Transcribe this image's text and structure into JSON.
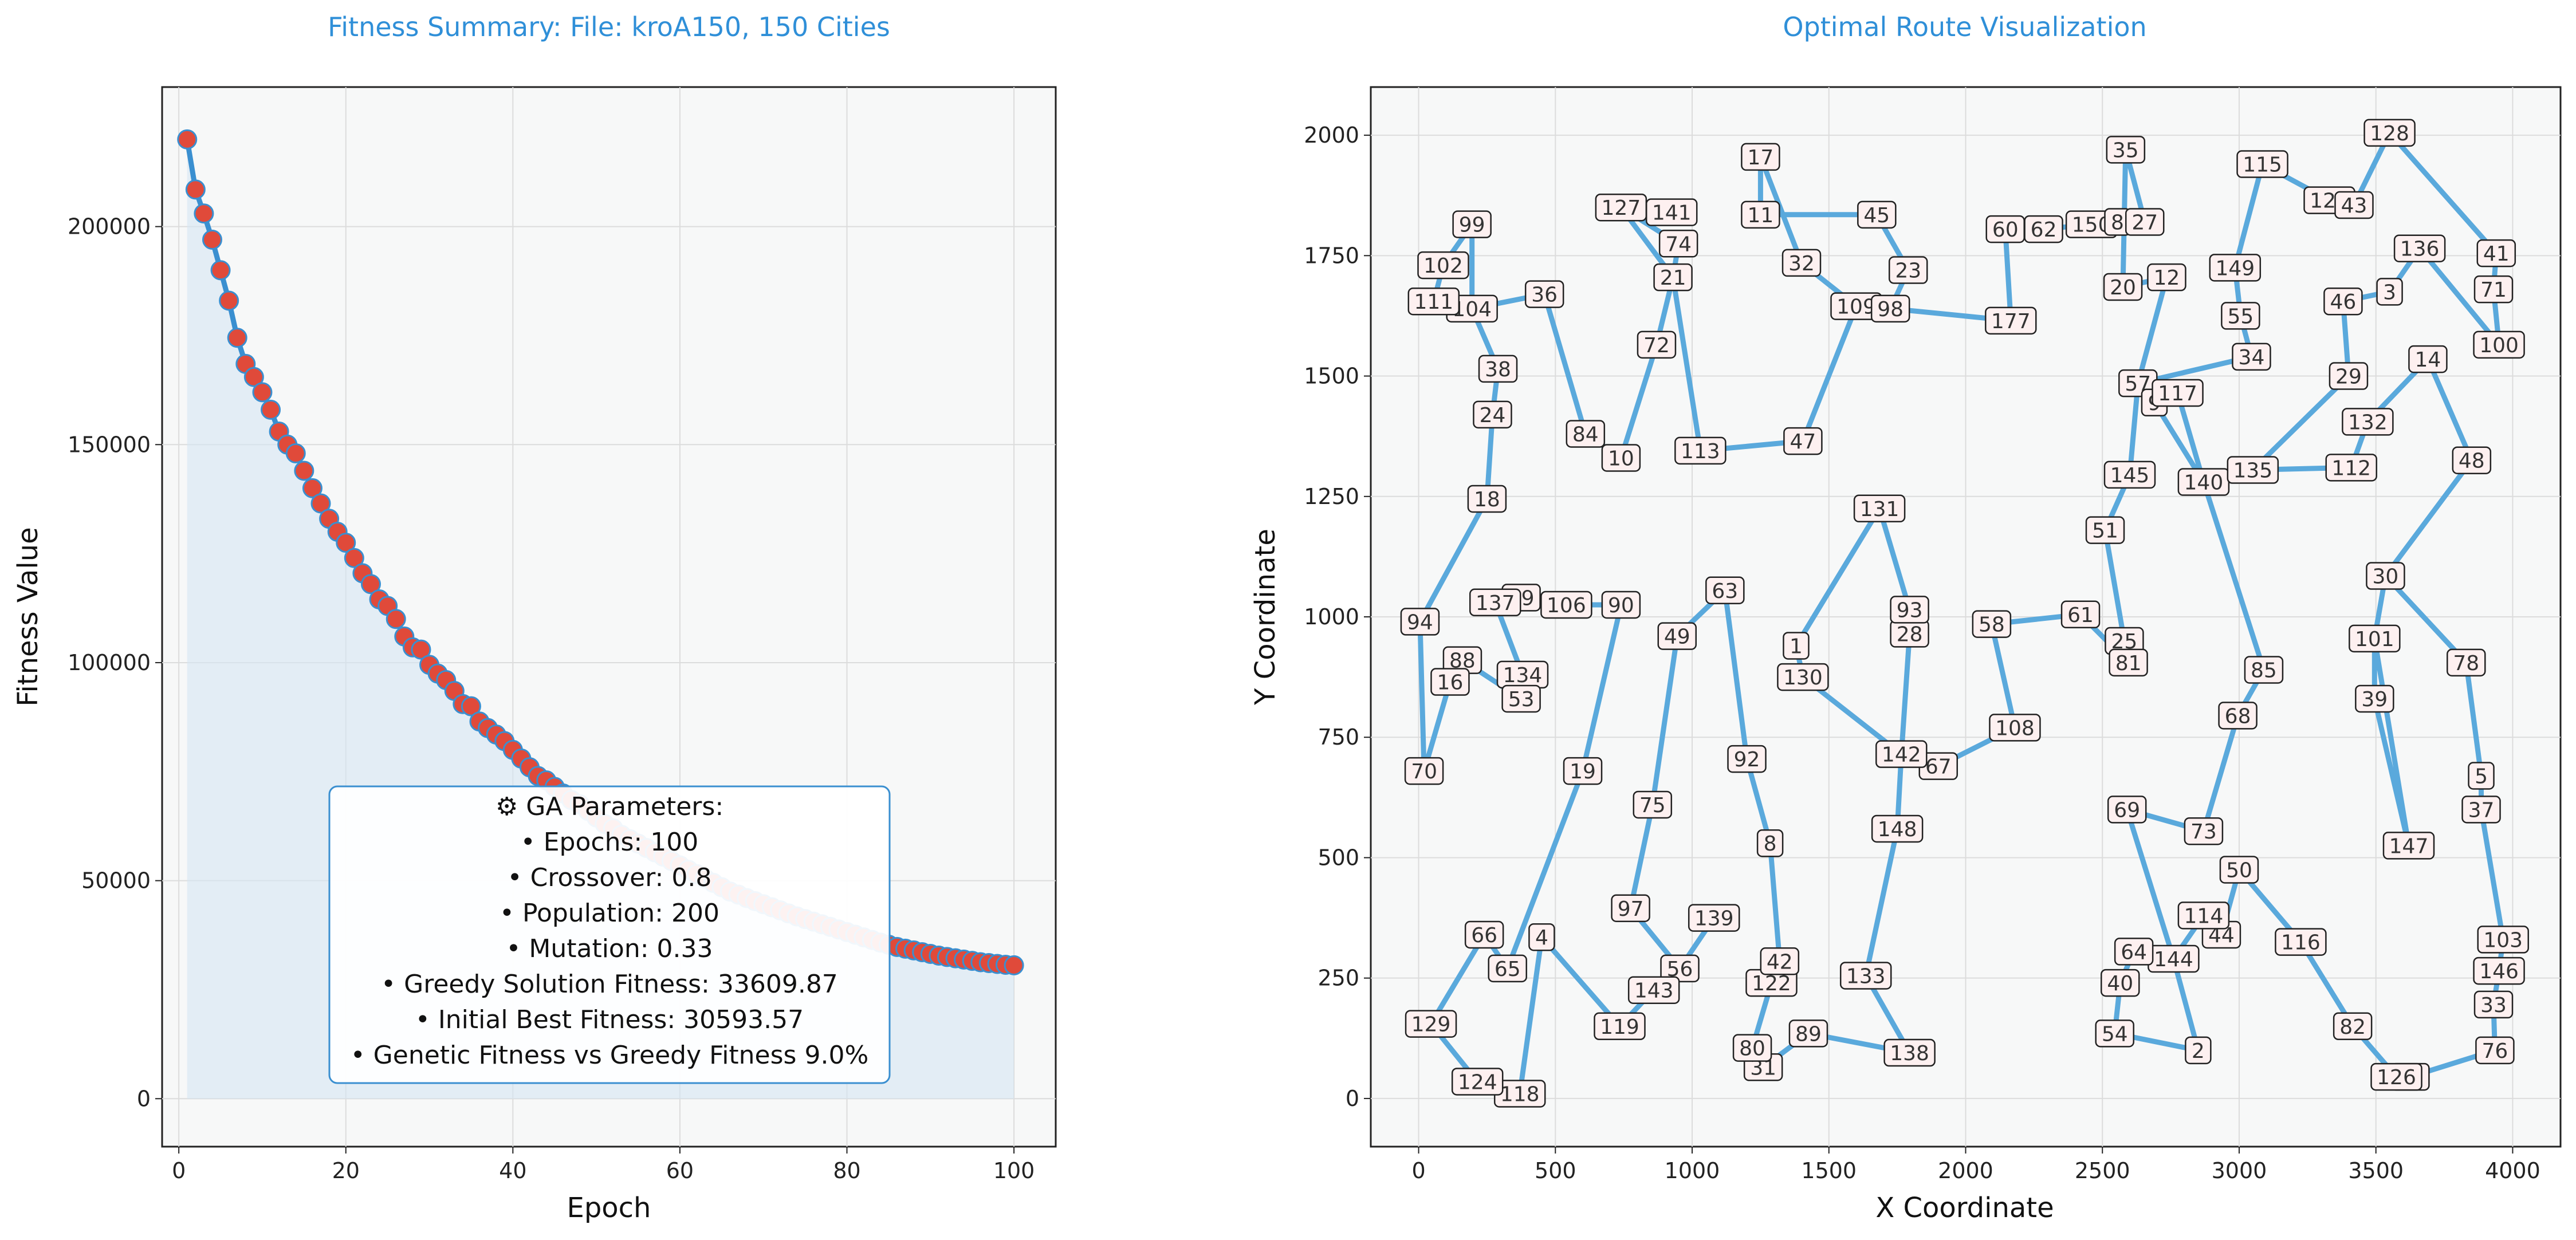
{
  "chart_data": [
    {
      "type": "line",
      "title": "Fitness Summary: File: kroA150, 150 Cities",
      "xlabel": "Epoch",
      "ylabel": "Fitness Value",
      "xlim": [
        -2,
        105
      ],
      "ylim": [
        -11000,
        232000
      ],
      "xticks": [
        0,
        20,
        40,
        60,
        80,
        100
      ],
      "yticks": [
        0,
        50000,
        100000,
        150000,
        200000
      ],
      "grid": true,
      "series": [
        {
          "x": [
            1,
            2,
            3,
            4,
            5,
            6,
            7,
            8,
            9,
            10,
            11,
            12,
            13,
            14,
            15,
            16,
            17,
            18,
            19,
            20,
            21,
            22,
            23,
            24,
            25,
            26,
            27,
            28,
            29,
            30,
            31,
            32,
            33,
            34,
            35,
            36,
            37,
            38,
            39,
            40,
            41,
            42,
            43,
            44,
            45,
            46,
            47,
            48,
            49,
            50,
            51,
            52,
            53,
            54,
            55,
            56,
            57,
            58,
            59,
            60,
            61,
            62,
            63,
            64,
            65,
            66,
            67,
            68,
            69,
            70,
            71,
            72,
            73,
            74,
            75,
            76,
            77,
            78,
            79,
            80,
            81,
            82,
            83,
            84,
            85,
            86,
            87,
            88,
            89,
            90,
            91,
            92,
            93,
            94,
            95,
            96,
            97,
            98,
            99,
            100
          ],
          "y": [
            220000,
            208500,
            203000,
            197000,
            190000,
            183000,
            174500,
            168500,
            165500,
            162000,
            158000,
            153000,
            150000,
            148000,
            144000,
            140000,
            136500,
            133000,
            130000,
            127500,
            124000,
            120500,
            118000,
            114500,
            113000,
            110000,
            106000,
            103500,
            103000,
            99500,
            97500,
            96000,
            93500,
            90500,
            90000,
            86500,
            85000,
            83500,
            82000,
            80000,
            78000,
            76000,
            74000,
            73000,
            71500,
            70000,
            68500,
            67500,
            66000,
            64500,
            63000,
            62000,
            60500,
            59500,
            58500,
            57500,
            56500,
            55500,
            54500,
            53500,
            52500,
            51500,
            50500,
            49500,
            48500,
            47500,
            46800,
            46000,
            45300,
            44600,
            43900,
            43200,
            42500,
            41800,
            41200,
            40600,
            40000,
            39400,
            38800,
            38200,
            37600,
            37000,
            36400,
            35800,
            35300,
            34800,
            34400,
            34000,
            33600,
            33200,
            32800,
            32500,
            32200,
            31900,
            31600,
            31300,
            31100,
            30900,
            30700,
            30594
          ]
        }
      ],
      "params_box": {
        "lines": [
          "⚙ GA Parameters:",
          "• Epochs: 100",
          "• Crossover: 0.8",
          "• Population: 200",
          "• Mutation: 0.33",
          "• Greedy Solution Fitness: 33609.87",
          "• Initial Best Fitness: 30593.57",
          "• Genetic Fitness vs Greedy Fitness 9.0%"
        ]
      }
    },
    {
      "type": "scatter",
      "title": "Optimal Route Visualization",
      "xlabel": "X Coordinate",
      "ylabel": "Y Coordinate",
      "xlim": [
        -175,
        4175
      ],
      "ylim": [
        -100,
        2100
      ],
      "xticks": [
        0,
        500,
        1000,
        1500,
        2000,
        2500,
        3000,
        3500,
        4000
      ],
      "yticks": [
        0,
        250,
        500,
        750,
        1000,
        1250,
        1500,
        1750,
        2000
      ],
      "grid": true,
      "colors": {
        "route": "#5aa9dc"
      },
      "points": [
        {
          "id": "94",
          "x": 5,
          "y": 990
        },
        {
          "id": "18",
          "x": 250,
          "y": 1245
        },
        {
          "id": "24",
          "x": 270,
          "y": 1420
        },
        {
          "id": "38",
          "x": 290,
          "y": 1515
        },
        {
          "id": "104",
          "x": 195,
          "y": 1640
        },
        {
          "id": "99",
          "x": 195,
          "y": 1815
        },
        {
          "id": "102",
          "x": 90,
          "y": 1730
        },
        {
          "id": "111",
          "x": 55,
          "y": 1655
        },
        {
          "id": "36",
          "x": 460,
          "y": 1670
        },
        {
          "id": "84",
          "x": 610,
          "y": 1380
        },
        {
          "id": "10",
          "x": 740,
          "y": 1330
        },
        {
          "id": "72",
          "x": 870,
          "y": 1565
        },
        {
          "id": "21",
          "x": 930,
          "y": 1705
        },
        {
          "id": "74",
          "x": 950,
          "y": 1775
        },
        {
          "id": "127",
          "x": 740,
          "y": 1850
        },
        {
          "id": "141",
          "x": 925,
          "y": 1840
        },
        {
          "id": "113",
          "x": 1030,
          "y": 1345
        },
        {
          "id": "47",
          "x": 1405,
          "y": 1365
        },
        {
          "id": "109",
          "x": 1600,
          "y": 1645
        },
        {
          "id": "98",
          "x": 1725,
          "y": 1640
        },
        {
          "id": "23",
          "x": 1790,
          "y": 1720
        },
        {
          "id": "45",
          "x": 1675,
          "y": 1835
        },
        {
          "id": "11",
          "x": 1250,
          "y": 1835
        },
        {
          "id": "17",
          "x": 1250,
          "y": 1955
        },
        {
          "id": "32",
          "x": 1400,
          "y": 1735
        },
        {
          "id": "177",
          "x": 2165,
          "y": 1615
        },
        {
          "id": "60",
          "x": 2145,
          "y": 1805
        },
        {
          "id": "62",
          "x": 2285,
          "y": 1805
        },
        {
          "id": "150",
          "x": 2460,
          "y": 1815
        },
        {
          "id": "8",
          "x": 2555,
          "y": 1820
        },
        {
          "id": "27",
          "x": 2655,
          "y": 1820
        },
        {
          "id": "35",
          "x": 2585,
          "y": 1970
        },
        {
          "id": "20",
          "x": 2575,
          "y": 1685
        },
        {
          "id": "12",
          "x": 2735,
          "y": 1705
        },
        {
          "id": "57",
          "x": 2630,
          "y": 1485
        },
        {
          "id": "9",
          "x": 2690,
          "y": 1445
        },
        {
          "id": "117",
          "x": 2775,
          "y": 1465
        },
        {
          "id": "145",
          "x": 2600,
          "y": 1295
        },
        {
          "id": "51",
          "x": 2510,
          "y": 1180
        },
        {
          "id": "25",
          "x": 2580,
          "y": 950
        },
        {
          "id": "81",
          "x": 2595,
          "y": 905
        },
        {
          "id": "61",
          "x": 2420,
          "y": 1005
        },
        {
          "id": "58",
          "x": 2095,
          "y": 985
        },
        {
          "id": "108",
          "x": 2180,
          "y": 770
        },
        {
          "id": "67",
          "x": 1900,
          "y": 690
        },
        {
          "id": "142",
          "x": 1765,
          "y": 715
        },
        {
          "id": "28",
          "x": 1795,
          "y": 965
        },
        {
          "id": "93",
          "x": 1795,
          "y": 1015
        },
        {
          "id": "131",
          "x": 1685,
          "y": 1225
        },
        {
          "id": "1",
          "x": 1380,
          "y": 940
        },
        {
          "id": "130",
          "x": 1405,
          "y": 875
        },
        {
          "id": "148",
          "x": 1750,
          "y": 560
        },
        {
          "id": "133",
          "x": 1635,
          "y": 255
        },
        {
          "id": "138",
          "x": 1795,
          "y": 95
        },
        {
          "id": "89",
          "x": 1425,
          "y": 135
        },
        {
          "id": "31",
          "x": 1260,
          "y": 65
        },
        {
          "id": "80",
          "x": 1220,
          "y": 105
        },
        {
          "id": "122",
          "x": 1290,
          "y": 240
        },
        {
          "id": "42",
          "x": 1320,
          "y": 285
        },
        {
          "id": "8b",
          "x": 1285,
          "y": 530
        },
        {
          "id": "92",
          "x": 1200,
          "y": 705
        },
        {
          "id": "63",
          "x": 1120,
          "y": 1055
        },
        {
          "id": "49",
          "x": 945,
          "y": 960
        },
        {
          "id": "75",
          "x": 855,
          "y": 610
        },
        {
          "id": "97",
          "x": 775,
          "y": 395
        },
        {
          "id": "56",
          "x": 955,
          "y": 270
        },
        {
          "id": "139",
          "x": 1080,
          "y": 375
        },
        {
          "id": "143",
          "x": 860,
          "y": 225
        },
        {
          "id": "119",
          "x": 735,
          "y": 150
        },
        {
          "id": "4",
          "x": 450,
          "y": 335
        },
        {
          "id": "118",
          "x": 370,
          "y": 10
        },
        {
          "id": "124",
          "x": 215,
          "y": 35
        },
        {
          "id": "129",
          "x": 45,
          "y": 155
        },
        {
          "id": "66",
          "x": 240,
          "y": 340
        },
        {
          "id": "65",
          "x": 325,
          "y": 270
        },
        {
          "id": "19",
          "x": 600,
          "y": 680
        },
        {
          "id": "90",
          "x": 740,
          "y": 1025
        },
        {
          "id": "106",
          "x": 540,
          "y": 1025
        },
        {
          "id": "79",
          "x": 375,
          "y": 1040
        },
        {
          "id": "137",
          "x": 280,
          "y": 1030
        },
        {
          "id": "134",
          "x": 380,
          "y": 880
        },
        {
          "id": "53",
          "x": 375,
          "y": 830
        },
        {
          "id": "88",
          "x": 160,
          "y": 910
        },
        {
          "id": "16",
          "x": 115,
          "y": 865
        },
        {
          "id": "70",
          "x": 20,
          "y": 680
        },
        {
          "id": "140",
          "x": 2870,
          "y": 1280
        },
        {
          "id": "135",
          "x": 3050,
          "y": 1305
        },
        {
          "id": "112",
          "x": 3410,
          "y": 1310
        },
        {
          "id": "132",
          "x": 3470,
          "y": 1405
        },
        {
          "id": "14",
          "x": 3690,
          "y": 1535
        },
        {
          "id": "48",
          "x": 3850,
          "y": 1325
        },
        {
          "id": "30",
          "x": 3535,
          "y": 1085
        },
        {
          "id": "101",
          "x": 3495,
          "y": 955
        },
        {
          "id": "39",
          "x": 3495,
          "y": 830
        },
        {
          "id": "147",
          "x": 3620,
          "y": 525
        },
        {
          "id": "78",
          "x": 3830,
          "y": 905
        },
        {
          "id": "5",
          "x": 3885,
          "y": 670
        },
        {
          "id": "37",
          "x": 3885,
          "y": 600
        },
        {
          "id": "103",
          "x": 3965,
          "y": 330
        },
        {
          "id": "146",
          "x": 3950,
          "y": 265
        },
        {
          "id": "33",
          "x": 3930,
          "y": 195
        },
        {
          "id": "76",
          "x": 3935,
          "y": 100
        },
        {
          "id": "95",
          "x": 3625,
          "y": 45
        },
        {
          "id": "126",
          "x": 3575,
          "y": 45
        },
        {
          "id": "82",
          "x": 3415,
          "y": 150
        },
        {
          "id": "116",
          "x": 3225,
          "y": 325
        },
        {
          "id": "50",
          "x": 3000,
          "y": 475
        },
        {
          "id": "44",
          "x": 2935,
          "y": 340
        },
        {
          "id": "114",
          "x": 2870,
          "y": 380
        },
        {
          "id": "144",
          "x": 2760,
          "y": 290
        },
        {
          "id": "64",
          "x": 2615,
          "y": 305
        },
        {
          "id": "40",
          "x": 2565,
          "y": 240
        },
        {
          "id": "54",
          "x": 2545,
          "y": 135
        },
        {
          "id": "2",
          "x": 2850,
          "y": 100
        },
        {
          "id": "69",
          "x": 2590,
          "y": 600
        },
        {
          "id": "73",
          "x": 2870,
          "y": 555
        },
        {
          "id": "68",
          "x": 2995,
          "y": 795
        },
        {
          "id": "85",
          "x": 3090,
          "y": 890
        },
        {
          "id": "34",
          "x": 3045,
          "y": 1540
        },
        {
          "id": "55",
          "x": 3005,
          "y": 1625
        },
        {
          "id": "149",
          "x": 2985,
          "y": 1725
        },
        {
          "id": "115",
          "x": 3085,
          "y": 1940
        },
        {
          "id": "123",
          "x": 3330,
          "y": 1865
        },
        {
          "id": "43",
          "x": 3420,
          "y": 1855
        },
        {
          "id": "128",
          "x": 3550,
          "y": 2005
        },
        {
          "id": "41",
          "x": 3940,
          "y": 1755
        },
        {
          "id": "71",
          "x": 3930,
          "y": 1680
        },
        {
          "id": "100",
          "x": 3950,
          "y": 1565
        },
        {
          "id": "136",
          "x": 3660,
          "y": 1765
        },
        {
          "id": "3",
          "x": 3550,
          "y": 1675
        },
        {
          "id": "46",
          "x": 3380,
          "y": 1655
        },
        {
          "id": "29",
          "x": 3400,
          "y": 1500
        }
      ],
      "route": [
        "70",
        "94",
        "18",
        "24",
        "38",
        "104",
        "99",
        "102",
        "111",
        "104",
        "36",
        "84",
        "10",
        "72",
        "21",
        "74",
        "127",
        "21",
        "113",
        "47",
        "109",
        "98",
        "23",
        "45",
        "11",
        "17",
        "32",
        "109",
        "98",
        "177",
        "60",
        "62",
        "150",
        "8",
        "27",
        "35",
        "20",
        "12",
        "57",
        "145",
        "51",
        "25",
        "81",
        "61",
        "58",
        "108",
        "67",
        "142",
        "28",
        "93",
        "131",
        "1",
        "130",
        "142",
        "148",
        "133",
        "138",
        "89",
        "31",
        "80",
        "122",
        "42",
        "8b",
        "92",
        "63",
        "49",
        "75",
        "97",
        "56",
        "139",
        "56",
        "143",
        "119",
        "4",
        "118",
        "124",
        "129",
        "66",
        "65",
        "19",
        "90",
        "106",
        "79",
        "137",
        "134",
        "53",
        "88",
        "16",
        "70"
      ],
      "route2": [
        "9",
        "140",
        "135",
        "112",
        "132",
        "14",
        "48",
        "30",
        "101",
        "39",
        "147",
        "101",
        "30",
        "78",
        "5",
        "37",
        "103",
        "146",
        "33",
        "76",
        "95",
        "126",
        "82",
        "116",
        "50",
        "44",
        "114",
        "144",
        "64",
        "40",
        "54",
        "2",
        "144",
        "69",
        "73",
        "68",
        "85",
        "140",
        "117",
        "9",
        "57",
        "34",
        "55",
        "149",
        "115",
        "123",
        "43",
        "128",
        "41",
        "71",
        "100",
        "136",
        "3",
        "46",
        "29",
        "135"
      ]
    }
  ]
}
